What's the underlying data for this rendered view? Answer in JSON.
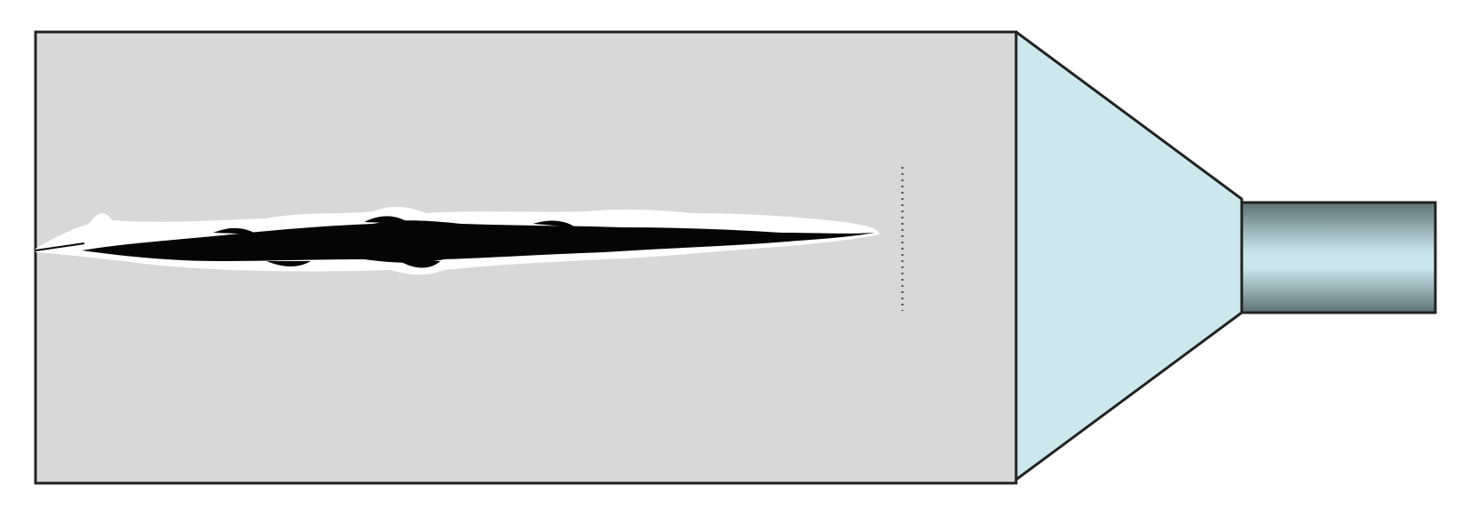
{
  "colors": {
    "background": "#ffffff",
    "chamber_fill": "#d7d8d7",
    "outline": "#222222",
    "nozzle_fill": "#cce8ec",
    "pipe_light": "#c9e5ea",
    "pipe_dark": "#5c7275",
    "streak_core": "#050505",
    "streak_halo": "#ffffff",
    "dotted_line": "#555555"
  },
  "icons": {
    "streak": "ink-streak-icon",
    "marker": "dotted-marker-icon"
  }
}
